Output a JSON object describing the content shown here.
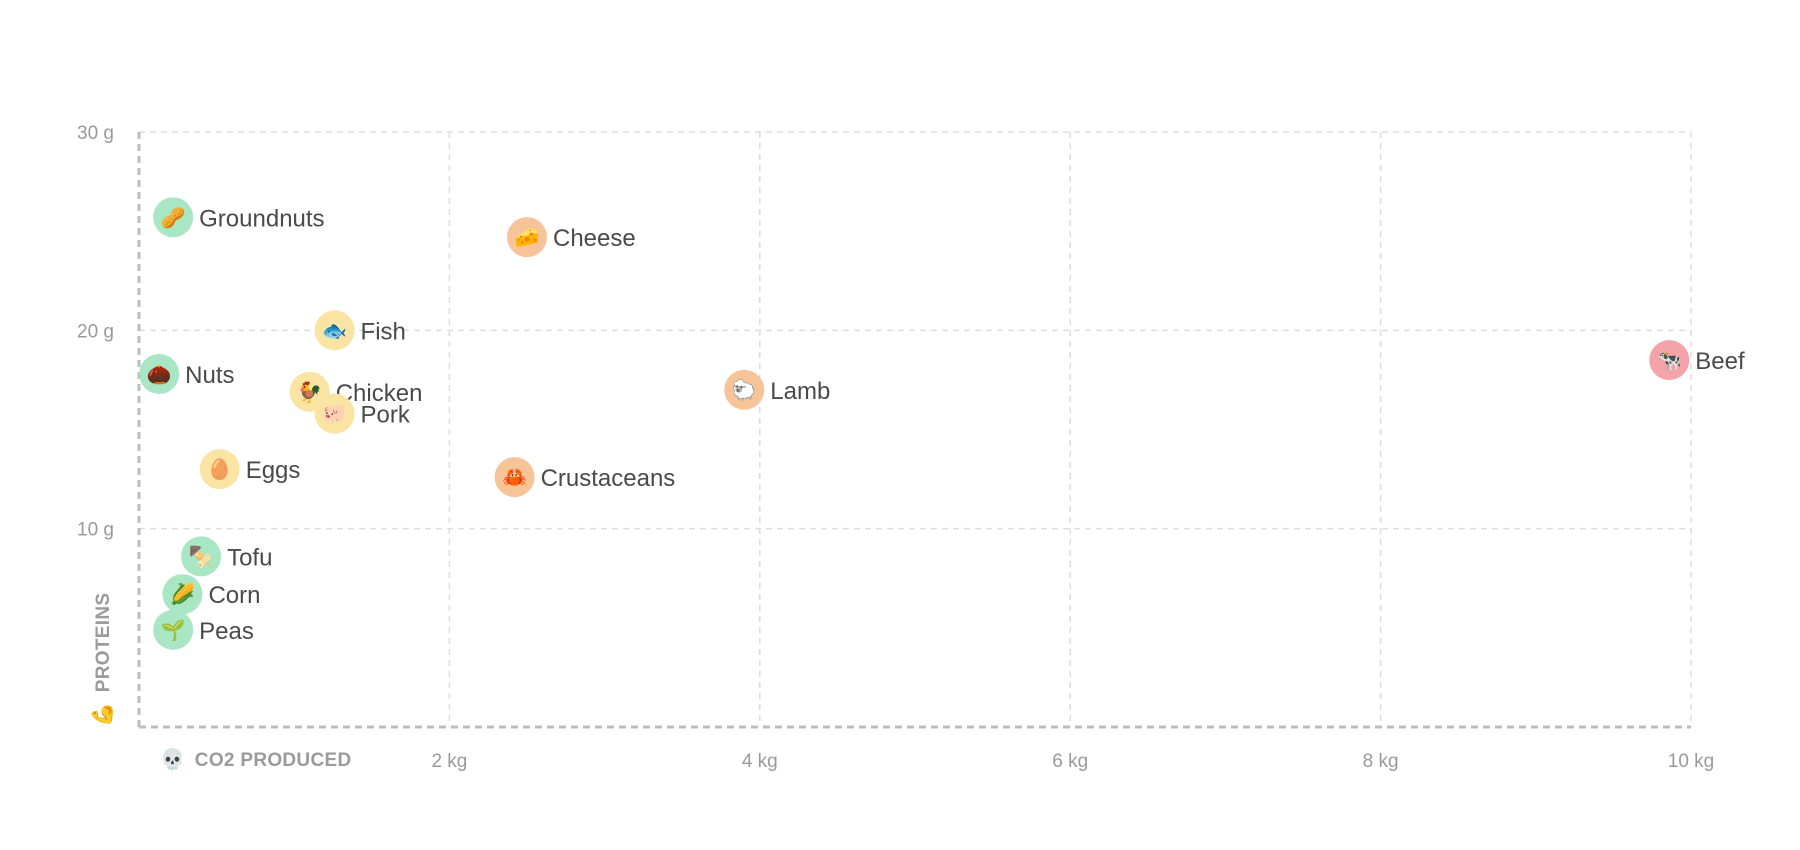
{
  "chart_data": {
    "type": "scatter",
    "xlabel": "CO2 PRODUCED",
    "ylabel": "PROTEINS",
    "xlabel_icon": "💀",
    "ylabel_icon": "💪",
    "xlim": [
      0,
      10
    ],
    "ylim": [
      0,
      30
    ],
    "x_ticks": [
      {
        "value": 2,
        "label": "2 kg"
      },
      {
        "value": 4,
        "label": "4 kg"
      },
      {
        "value": 6,
        "label": "6 kg"
      },
      {
        "value": 8,
        "label": "8 kg"
      },
      {
        "value": 10,
        "label": "10 kg"
      }
    ],
    "y_ticks": [
      {
        "value": 10,
        "label": "10 g"
      },
      {
        "value": 20,
        "label": "20 g"
      },
      {
        "value": 30,
        "label": "30 g"
      }
    ],
    "grid": true,
    "colors": {
      "green": "#a8e6c4",
      "yellow": "#f9e4a4",
      "orange": "#f7c49a",
      "red": "#f4a3a8"
    },
    "points": [
      {
        "name": "Groundnuts",
        "icon": "🥜",
        "x": 0.22,
        "y": 25.7,
        "color": "green"
      },
      {
        "name": "Cheese",
        "icon": "🧀",
        "x": 2.5,
        "y": 24.7,
        "color": "orange"
      },
      {
        "name": "Fish",
        "icon": "🐟",
        "x": 1.26,
        "y": 20.0,
        "color": "yellow"
      },
      {
        "name": "Nuts",
        "icon": "🌰",
        "x": 0.13,
        "y": 17.8,
        "color": "green"
      },
      {
        "name": "Chicken",
        "icon": "🐓",
        "x": 1.1,
        "y": 16.9,
        "color": "yellow"
      },
      {
        "name": "Pork",
        "icon": "🐖",
        "x": 1.26,
        "y": 15.8,
        "color": "yellow"
      },
      {
        "name": "Lamb",
        "icon": "🐑",
        "x": 3.9,
        "y": 17.0,
        "color": "orange"
      },
      {
        "name": "Beef",
        "icon": "🐄",
        "x": 9.86,
        "y": 18.5,
        "color": "red"
      },
      {
        "name": "Eggs",
        "icon": "🥚",
        "x": 0.52,
        "y": 13.0,
        "color": "yellow"
      },
      {
        "name": "Crustaceans",
        "icon": "🦀",
        "x": 2.42,
        "y": 12.6,
        "color": "orange"
      },
      {
        "name": "Tofu",
        "icon": "🍢",
        "x": 0.4,
        "y": 8.6,
        "color": "green"
      },
      {
        "name": "Corn",
        "icon": "🌽",
        "x": 0.28,
        "y": 6.7,
        "color": "green"
      },
      {
        "name": "Peas",
        "icon": "🌱",
        "x": 0.22,
        "y": 4.9,
        "color": "green"
      }
    ]
  }
}
